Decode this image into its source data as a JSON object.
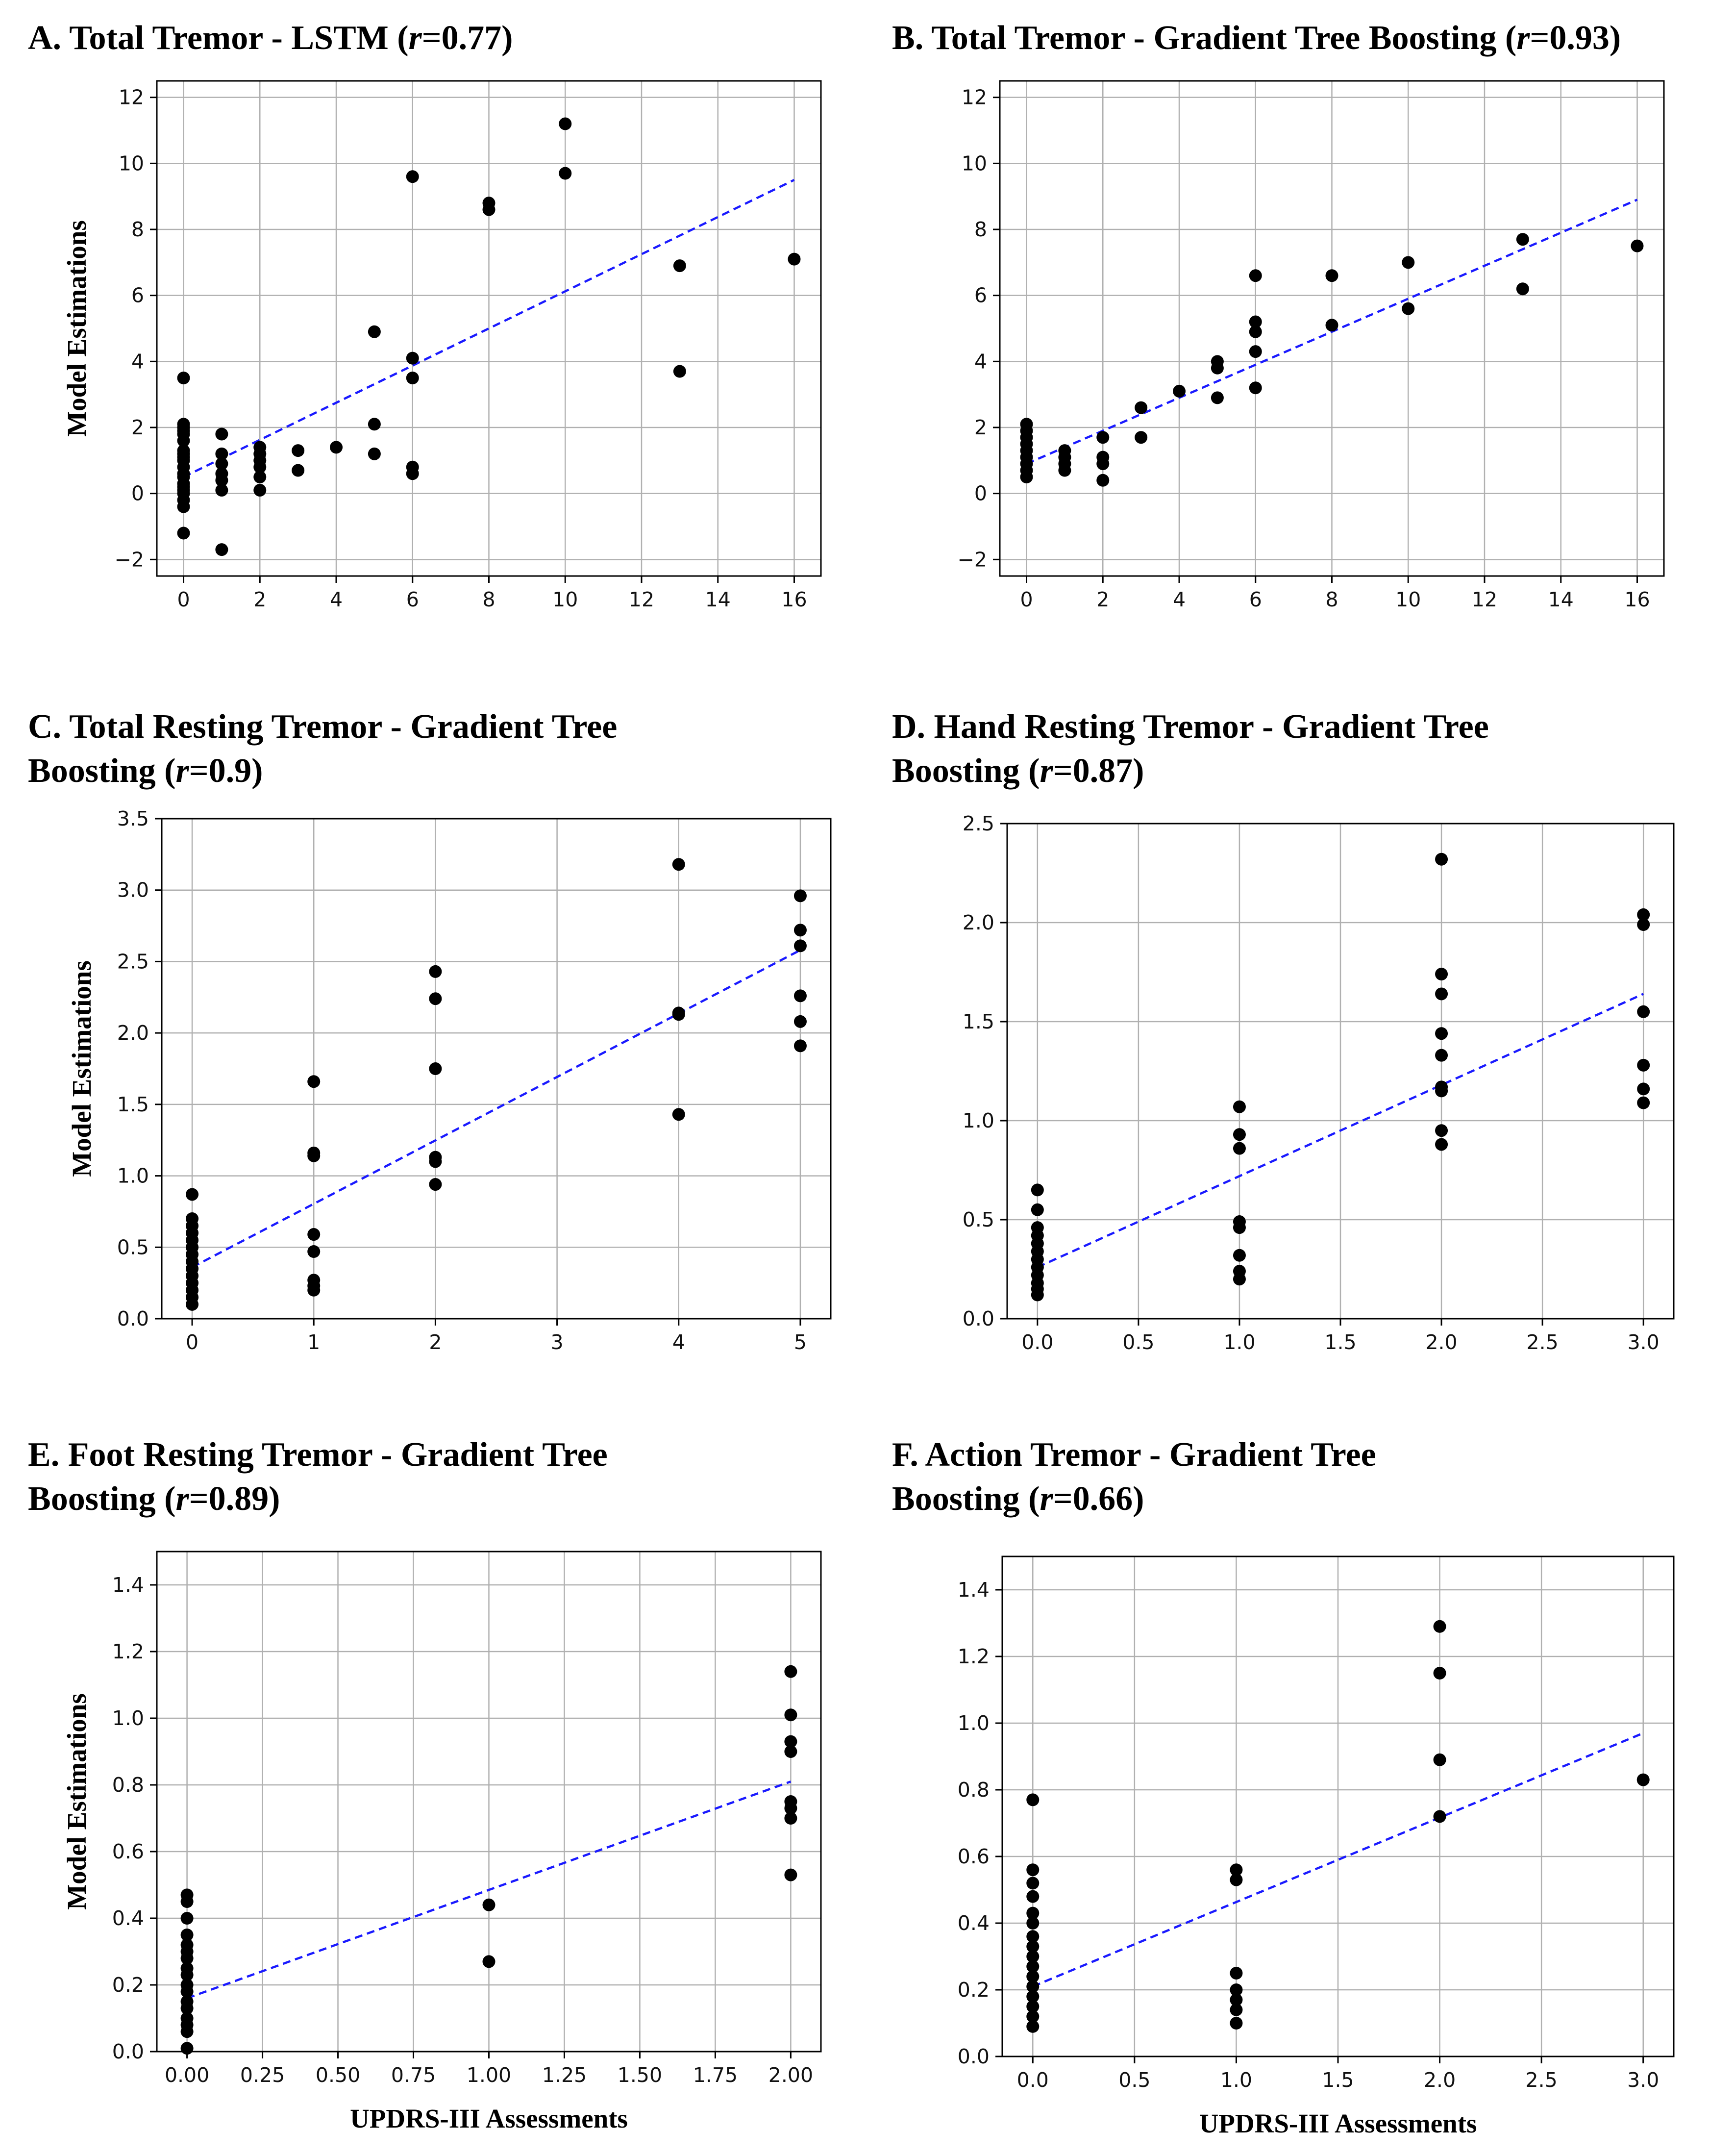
{
  "chart_data": [
    {
      "type": "scatter",
      "title": "A. Total Tremor - LSTM (r=0.77)",
      "title_lines": [
        [
          "A. Total Tremor - LSTM (",
          "r",
          "=0.77)"
        ]
      ],
      "xlabel": "",
      "ylabel": "Model Estimations",
      "xlim": [
        -0.7,
        16.7
      ],
      "ylim": [
        -2.5,
        12.5
      ],
      "xticks": [
        0,
        2,
        4,
        6,
        8,
        10,
        12,
        14,
        16
      ],
      "xtick_labels": [
        "0",
        "2",
        "4",
        "6",
        "8",
        "10",
        "12",
        "14",
        "16"
      ],
      "yticks": [
        -2,
        0,
        2,
        4,
        6,
        8,
        10,
        12
      ],
      "ytick_labels": [
        "−2",
        "0",
        "2",
        "4",
        "6",
        "8",
        "10",
        "12"
      ],
      "grid": true,
      "fit_line": {
        "x": [
          0,
          16
        ],
        "y": [
          0.5,
          9.5
        ],
        "color": "#1a1aff",
        "style": "dashed"
      },
      "points": [
        [
          0,
          3.5
        ],
        [
          0,
          2.1
        ],
        [
          0,
          2.0
        ],
        [
          0,
          1.9
        ],
        [
          0,
          1.8
        ],
        [
          0,
          1.6
        ],
        [
          0,
          1.3
        ],
        [
          0,
          1.2
        ],
        [
          0,
          1.1
        ],
        [
          0,
          1.0
        ],
        [
          0,
          0.8
        ],
        [
          0,
          0.6
        ],
        [
          0,
          0.5
        ],
        [
          0,
          0.3
        ],
        [
          0,
          0.2
        ],
        [
          0,
          0.1
        ],
        [
          0,
          0.0
        ],
        [
          0,
          -0.2
        ],
        [
          0,
          -0.4
        ],
        [
          0,
          -1.2
        ],
        [
          1,
          1.8
        ],
        [
          1,
          1.2
        ],
        [
          1,
          0.9
        ],
        [
          1,
          0.6
        ],
        [
          1,
          0.4
        ],
        [
          1,
          0.1
        ],
        [
          1,
          -1.7
        ],
        [
          2,
          1.4
        ],
        [
          2,
          1.2
        ],
        [
          2,
          1.0
        ],
        [
          2,
          0.8
        ],
        [
          2,
          0.5
        ],
        [
          2,
          0.1
        ],
        [
          3,
          1.3
        ],
        [
          3,
          0.7
        ],
        [
          4,
          1.4
        ],
        [
          5,
          4.9
        ],
        [
          5,
          2.1
        ],
        [
          5,
          1.2
        ],
        [
          6,
          9.6
        ],
        [
          6,
          4.1
        ],
        [
          6,
          3.5
        ],
        [
          6,
          0.8
        ],
        [
          6,
          0.6
        ],
        [
          8,
          8.8
        ],
        [
          8,
          8.6
        ],
        [
          10,
          11.2
        ],
        [
          10,
          9.7
        ],
        [
          13,
          6.9
        ],
        [
          13,
          3.7
        ],
        [
          16,
          7.1
        ]
      ]
    },
    {
      "type": "scatter",
      "title": "B. Total Tremor - Gradient Tree Boosting (r=0.93)",
      "title_lines": [
        [
          "B. Total Tremor - Gradient Tree Boosting (",
          "r",
          "=0.93)"
        ]
      ],
      "xlabel": "",
      "ylabel": "",
      "xlim": [
        -0.7,
        16.7
      ],
      "ylim": [
        -2.5,
        12.5
      ],
      "xticks": [
        0,
        2,
        4,
        6,
        8,
        10,
        12,
        14,
        16
      ],
      "xtick_labels": [
        "0",
        "2",
        "4",
        "6",
        "8",
        "10",
        "12",
        "14",
        "16"
      ],
      "yticks": [
        -2,
        0,
        2,
        4,
        6,
        8,
        10,
        12
      ],
      "ytick_labels": [
        "−2",
        "0",
        "2",
        "4",
        "6",
        "8",
        "10",
        "12"
      ],
      "grid": true,
      "fit_line": {
        "x": [
          0,
          16
        ],
        "y": [
          0.9,
          8.9
        ],
        "color": "#1a1aff",
        "style": "dashed"
      },
      "points": [
        [
          0,
          2.1
        ],
        [
          0,
          1.9
        ],
        [
          0,
          1.7
        ],
        [
          0,
          1.5
        ],
        [
          0,
          1.3
        ],
        [
          0,
          1.1
        ],
        [
          0,
          0.9
        ],
        [
          0,
          0.7
        ],
        [
          0,
          0.5
        ],
        [
          1,
          1.3
        ],
        [
          1,
          1.1
        ],
        [
          1,
          0.9
        ],
        [
          1,
          0.7
        ],
        [
          2,
          1.7
        ],
        [
          2,
          1.1
        ],
        [
          2,
          0.9
        ],
        [
          2,
          0.4
        ],
        [
          3,
          2.6
        ],
        [
          3,
          1.7
        ],
        [
          4,
          3.1
        ],
        [
          5,
          4.0
        ],
        [
          5,
          3.8
        ],
        [
          5,
          2.9
        ],
        [
          6,
          6.6
        ],
        [
          6,
          5.2
        ],
        [
          6,
          4.9
        ],
        [
          6,
          4.3
        ],
        [
          6,
          3.2
        ],
        [
          8,
          6.6
        ],
        [
          8,
          5.1
        ],
        [
          10,
          7.0
        ],
        [
          10,
          5.6
        ],
        [
          13,
          7.7
        ],
        [
          13,
          6.2
        ],
        [
          16,
          7.5
        ]
      ]
    },
    {
      "type": "scatter",
      "title": "C. Total Resting Tremor - Gradient Tree Boosting (r=0.9)",
      "title_lines": [
        [
          "C. Total Resting Tremor - Gradient Tree"
        ],
        [
          "Boosting (",
          "r",
          "=0.9)"
        ]
      ],
      "xlabel": "",
      "ylabel": "Model Estimations",
      "xlim": [
        -0.25,
        5.25
      ],
      "ylim": [
        0.0,
        3.5
      ],
      "xticks": [
        0,
        1,
        2,
        3,
        4,
        5
      ],
      "xtick_labels": [
        "0",
        "1",
        "2",
        "3",
        "4",
        "5"
      ],
      "yticks": [
        0.0,
        0.5,
        1.0,
        1.5,
        2.0,
        2.5,
        3.0,
        3.5
      ],
      "ytick_labels": [
        "0.0",
        "0.5",
        "1.0",
        "1.5",
        "2.0",
        "2.5",
        "3.0",
        "3.5"
      ],
      "grid": true,
      "fit_line": {
        "x": [
          0,
          5
        ],
        "y": [
          0.36,
          2.58
        ],
        "color": "#1a1aff",
        "style": "dashed"
      },
      "points": [
        [
          0,
          0.87
        ],
        [
          0,
          0.7
        ],
        [
          0,
          0.65
        ],
        [
          0,
          0.6
        ],
        [
          0,
          0.55
        ],
        [
          0,
          0.5
        ],
        [
          0,
          0.45
        ],
        [
          0,
          0.4
        ],
        [
          0,
          0.35
        ],
        [
          0,
          0.3
        ],
        [
          0,
          0.25
        ],
        [
          0,
          0.2
        ],
        [
          0,
          0.15
        ],
        [
          0,
          0.1
        ],
        [
          1,
          1.66
        ],
        [
          1,
          1.16
        ],
        [
          1,
          1.14
        ],
        [
          1,
          0.59
        ],
        [
          1,
          0.47
        ],
        [
          1,
          0.27
        ],
        [
          1,
          0.23
        ],
        [
          1,
          0.2
        ],
        [
          2,
          2.43
        ],
        [
          2,
          2.24
        ],
        [
          2,
          1.75
        ],
        [
          2,
          1.13
        ],
        [
          2,
          1.1
        ],
        [
          2,
          0.94
        ],
        [
          4,
          3.18
        ],
        [
          4,
          2.14
        ],
        [
          4,
          2.13
        ],
        [
          4,
          1.43
        ],
        [
          5,
          2.96
        ],
        [
          5,
          2.72
        ],
        [
          5,
          2.61
        ],
        [
          5,
          2.26
        ],
        [
          5,
          2.08
        ],
        [
          5,
          1.91
        ]
      ]
    },
    {
      "type": "scatter",
      "title": "D. Hand Resting Tremor - Gradient Tree Boosting (r=0.87)",
      "title_lines": [
        [
          "D. Hand Resting Tremor - Gradient Tree"
        ],
        [
          "Boosting (",
          "r",
          "=0.87)"
        ]
      ],
      "xlabel": "",
      "ylabel": "",
      "xlim": [
        -0.15,
        3.15
      ],
      "ylim": [
        0.0,
        2.5
      ],
      "xticks": [
        0.0,
        0.5,
        1.0,
        1.5,
        2.0,
        2.5,
        3.0
      ],
      "xtick_labels": [
        "0.0",
        "0.5",
        "1.0",
        "1.5",
        "2.0",
        "2.5",
        "3.0"
      ],
      "yticks": [
        0.0,
        0.5,
        1.0,
        1.5,
        2.0,
        2.5
      ],
      "ytick_labels": [
        "0.0",
        "0.5",
        "1.0",
        "1.5",
        "2.0",
        "2.5"
      ],
      "grid": true,
      "fit_line": {
        "x": [
          0,
          3
        ],
        "y": [
          0.26,
          1.64
        ],
        "color": "#1a1aff",
        "style": "dashed"
      },
      "points": [
        [
          0,
          0.65
        ],
        [
          0,
          0.55
        ],
        [
          0,
          0.46
        ],
        [
          0,
          0.42
        ],
        [
          0,
          0.38
        ],
        [
          0,
          0.34
        ],
        [
          0,
          0.3
        ],
        [
          0,
          0.26
        ],
        [
          0,
          0.22
        ],
        [
          0,
          0.18
        ],
        [
          0,
          0.15
        ],
        [
          0,
          0.12
        ],
        [
          1,
          1.07
        ],
        [
          1,
          0.93
        ],
        [
          1,
          0.86
        ],
        [
          1,
          0.49
        ],
        [
          1,
          0.46
        ],
        [
          1,
          0.32
        ],
        [
          1,
          0.24
        ],
        [
          1,
          0.2
        ],
        [
          2,
          2.32
        ],
        [
          2,
          1.74
        ],
        [
          2,
          1.64
        ],
        [
          2,
          1.44
        ],
        [
          2,
          1.33
        ],
        [
          2,
          1.17
        ],
        [
          2,
          1.15
        ],
        [
          2,
          0.95
        ],
        [
          2,
          0.88
        ],
        [
          3,
          2.04
        ],
        [
          3,
          1.99
        ],
        [
          3,
          1.55
        ],
        [
          3,
          1.28
        ],
        [
          3,
          1.16
        ],
        [
          3,
          1.09
        ]
      ]
    },
    {
      "type": "scatter",
      "title": "E. Foot Resting Tremor - Gradient Tree Boosting (r=0.89)",
      "title_lines": [
        [
          "E. Foot Resting Tremor - Gradient Tree"
        ],
        [
          "Boosting (",
          "r",
          "=0.89)"
        ]
      ],
      "xlabel": "UPDRS-III Assessments",
      "ylabel": "Model Estimations",
      "xlim": [
        -0.1,
        2.1
      ],
      "ylim": [
        0.0,
        1.5
      ],
      "xticks": [
        0.0,
        0.25,
        0.5,
        0.75,
        1.0,
        1.25,
        1.5,
        1.75,
        2.0
      ],
      "xtick_labels": [
        "0.00",
        "0.25",
        "0.50",
        "0.75",
        "1.00",
        "1.25",
        "1.50",
        "1.75",
        "2.00"
      ],
      "yticks": [
        0.0,
        0.2,
        0.4,
        0.6,
        0.8,
        1.0,
        1.2,
        1.4
      ],
      "ytick_labels": [
        "0.0",
        "0.2",
        "0.4",
        "0.6",
        "0.8",
        "1.0",
        "1.2",
        "1.4"
      ],
      "grid": true,
      "fit_line": {
        "x": [
          0,
          2
        ],
        "y": [
          0.16,
          0.81
        ],
        "color": "#1a1aff",
        "style": "dashed"
      },
      "points": [
        [
          0,
          0.47
        ],
        [
          0,
          0.45
        ],
        [
          0,
          0.4
        ],
        [
          0,
          0.35
        ],
        [
          0,
          0.32
        ],
        [
          0,
          0.3
        ],
        [
          0,
          0.28
        ],
        [
          0,
          0.25
        ],
        [
          0,
          0.23
        ],
        [
          0,
          0.2
        ],
        [
          0,
          0.18
        ],
        [
          0,
          0.15
        ],
        [
          0,
          0.13
        ],
        [
          0,
          0.1
        ],
        [
          0,
          0.08
        ],
        [
          0,
          0.06
        ],
        [
          0,
          0.01
        ],
        [
          1,
          0.44
        ],
        [
          1,
          0.27
        ],
        [
          2,
          1.14
        ],
        [
          2,
          1.01
        ],
        [
          2,
          0.93
        ],
        [
          2,
          0.9
        ],
        [
          2,
          0.75
        ],
        [
          2,
          0.73
        ],
        [
          2,
          0.7
        ],
        [
          2,
          0.53
        ]
      ]
    },
    {
      "type": "scatter",
      "title": "F. Action Tremor - Gradient Tree Boosting (r=0.66)",
      "title_lines": [
        [
          "F. Action Tremor - Gradient Tree"
        ],
        [
          "Boosting (",
          "r",
          "=0.66)"
        ]
      ],
      "xlabel": "UPDRS-III Assessments",
      "ylabel": "",
      "xlim": [
        -0.15,
        3.15
      ],
      "ylim": [
        0.0,
        1.5
      ],
      "xticks": [
        0.0,
        0.5,
        1.0,
        1.5,
        2.0,
        2.5,
        3.0
      ],
      "xtick_labels": [
        "0.0",
        "0.5",
        "1.0",
        "1.5",
        "2.0",
        "2.5",
        "3.0"
      ],
      "yticks": [
        0.0,
        0.2,
        0.4,
        0.6,
        0.8,
        1.0,
        1.2,
        1.4
      ],
      "ytick_labels": [
        "0.0",
        "0.2",
        "0.4",
        "0.6",
        "0.8",
        "1.0",
        "1.2",
        "1.4"
      ],
      "grid": true,
      "fit_line": {
        "x": [
          0,
          3
        ],
        "y": [
          0.21,
          0.97
        ],
        "color": "#1a1aff",
        "style": "dashed"
      },
      "points": [
        [
          0,
          0.77
        ],
        [
          0,
          0.56
        ],
        [
          0,
          0.52
        ],
        [
          0,
          0.48
        ],
        [
          0,
          0.43
        ],
        [
          0,
          0.4
        ],
        [
          0,
          0.36
        ],
        [
          0,
          0.33
        ],
        [
          0,
          0.3
        ],
        [
          0,
          0.27
        ],
        [
          0,
          0.24
        ],
        [
          0,
          0.21
        ],
        [
          0,
          0.18
        ],
        [
          0,
          0.15
        ],
        [
          0,
          0.12
        ],
        [
          0,
          0.09
        ],
        [
          1,
          0.56
        ],
        [
          1,
          0.53
        ],
        [
          1,
          0.25
        ],
        [
          1,
          0.2
        ],
        [
          1,
          0.17
        ],
        [
          1,
          0.14
        ],
        [
          1,
          0.1
        ],
        [
          2,
          1.29
        ],
        [
          2,
          1.15
        ],
        [
          2,
          0.89
        ],
        [
          2,
          0.72
        ],
        [
          3,
          0.83
        ]
      ]
    }
  ]
}
